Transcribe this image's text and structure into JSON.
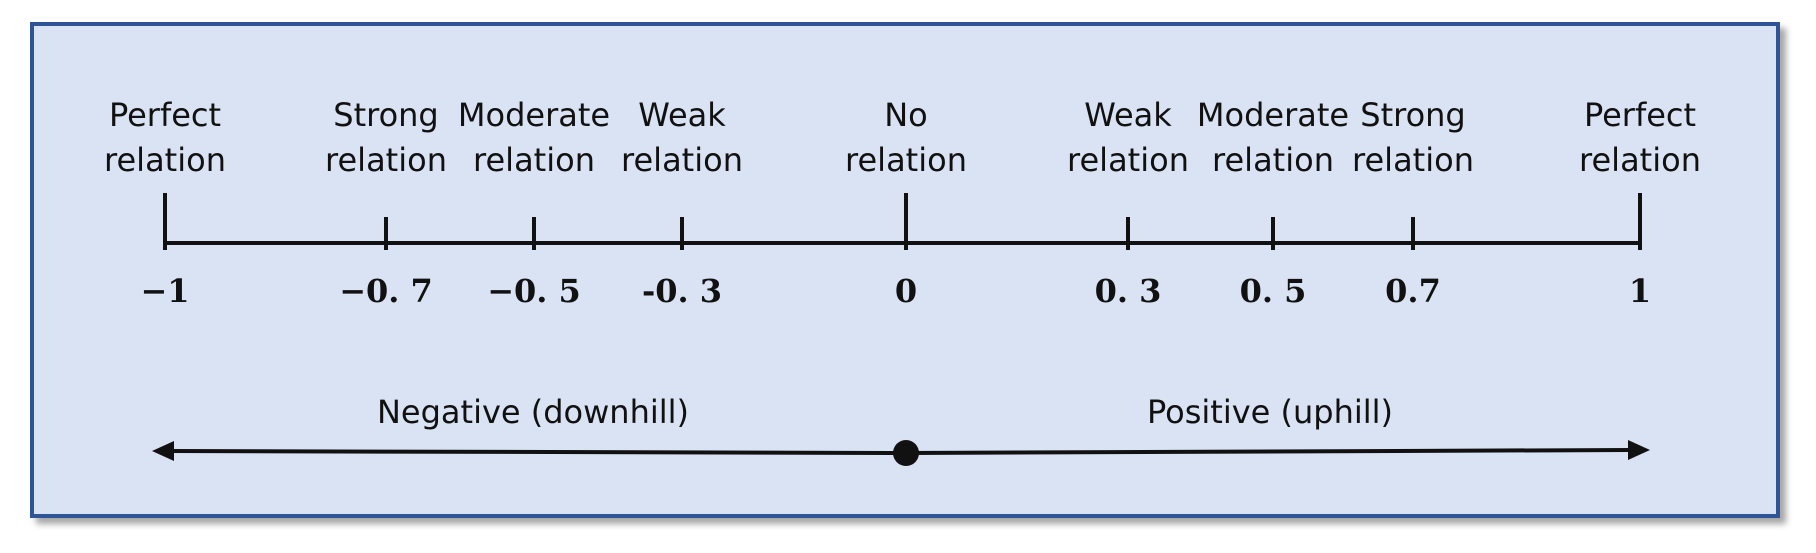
{
  "scale": {
    "ticks": [
      {
        "value": -1,
        "value_label": "−1",
        "label": [
          "Perfect",
          "relation"
        ]
      },
      {
        "value": -0.7,
        "value_label": "−0. 7",
        "label": [
          "Strong",
          "relation"
        ]
      },
      {
        "value": -0.5,
        "value_label": "−0. 5",
        "label": [
          "Moderate",
          "relation"
        ]
      },
      {
        "value": -0.3,
        "value_label": "-0. 3",
        "label": [
          "Weak",
          "relation"
        ]
      },
      {
        "value": 0,
        "value_label": "0",
        "label": [
          "No",
          "relation"
        ]
      },
      {
        "value": 0.3,
        "value_label": "0. 3",
        "label": [
          "Weak",
          "relation"
        ]
      },
      {
        "value": 0.5,
        "value_label": "0. 5",
        "label": [
          "Moderate",
          "relation"
        ]
      },
      {
        "value": 0.7,
        "value_label": "0.7",
        "label": [
          "Strong",
          "relation"
        ]
      },
      {
        "value": 1,
        "value_label": "1",
        "label": [
          "Perfect",
          "relation"
        ]
      }
    ],
    "range": [
      -1,
      1
    ]
  },
  "direction": {
    "negative_label": "Negative (downhill)",
    "positive_label": "Positive (uphill)"
  },
  "colors": {
    "panel_background": "#dae3f3",
    "panel_border": "#2f5597",
    "line": "#111111"
  }
}
